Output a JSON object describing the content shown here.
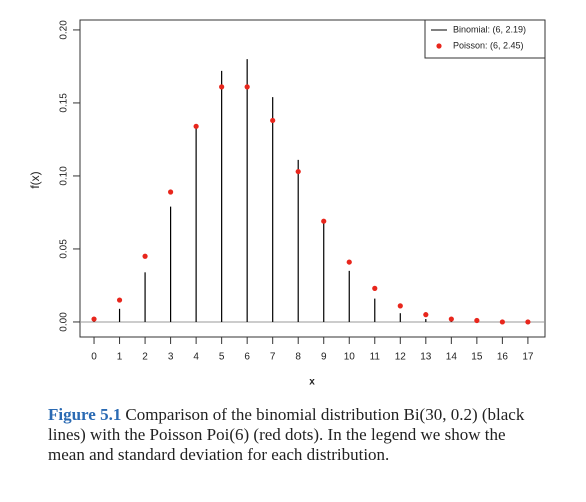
{
  "chart_data": {
    "type": "stem",
    "x": [
      0,
      1,
      2,
      3,
      4,
      5,
      6,
      7,
      8,
      9,
      10,
      11,
      12,
      13,
      14,
      15,
      16,
      17
    ],
    "series": [
      {
        "name": "Binomial: (6, 2.19)",
        "color": "#000000",
        "style": "lines",
        "values": [
          0.001,
          0.009,
          0.034,
          0.079,
          0.133,
          0.172,
          0.18,
          0.154,
          0.111,
          0.068,
          0.035,
          0.016,
          0.006,
          0.002,
          0.001,
          0.0,
          0.0,
          0.0
        ]
      },
      {
        "name": "Poisson: (6, 2.45)",
        "color": "#e8261c",
        "style": "dots",
        "values": [
          0.002,
          0.015,
          0.045,
          0.089,
          0.134,
          0.161,
          0.161,
          0.138,
          0.103,
          0.069,
          0.041,
          0.023,
          0.011,
          0.005,
          0.002,
          0.001,
          0.0,
          0.0
        ]
      }
    ],
    "xlabel": "x",
    "ylabel": "f(x)",
    "xlim": [
      -0.55,
      17.67
    ],
    "xticks": [
      0,
      1,
      2,
      3,
      4,
      5,
      6,
      7,
      8,
      9,
      10,
      11,
      12,
      13,
      14,
      15,
      16,
      17
    ],
    "ylim": [
      -0.0103,
      0.2068
    ],
    "yticks": [
      {
        "value": 0,
        "label": "0.00"
      },
      {
        "value": 0.05,
        "label": "0.05"
      },
      {
        "value": 0.1,
        "label": "0.10"
      },
      {
        "value": 0.15,
        "label": "0.15"
      },
      {
        "value": 0.2,
        "label": "0.20"
      }
    ],
    "baseline": true,
    "legend": "top-right",
    "caption": {
      "label": "Figure 5.1",
      "text": "Comparison of the binomial distribution Bi(30, 0.2) (black lines) with the Poisson Poi(6) (red dots). In the legend we show the mean and standard deviation for each distribution."
    }
  }
}
